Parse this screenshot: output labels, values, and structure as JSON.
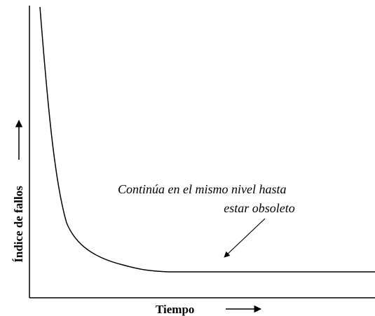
{
  "axes": {
    "y_label": "Índice de fallos",
    "x_label": "Tiempo"
  },
  "annotation": {
    "lines": [
      "Continúa en el mismo nivel hasta",
      "estar obsoleto"
    ]
  }
}
